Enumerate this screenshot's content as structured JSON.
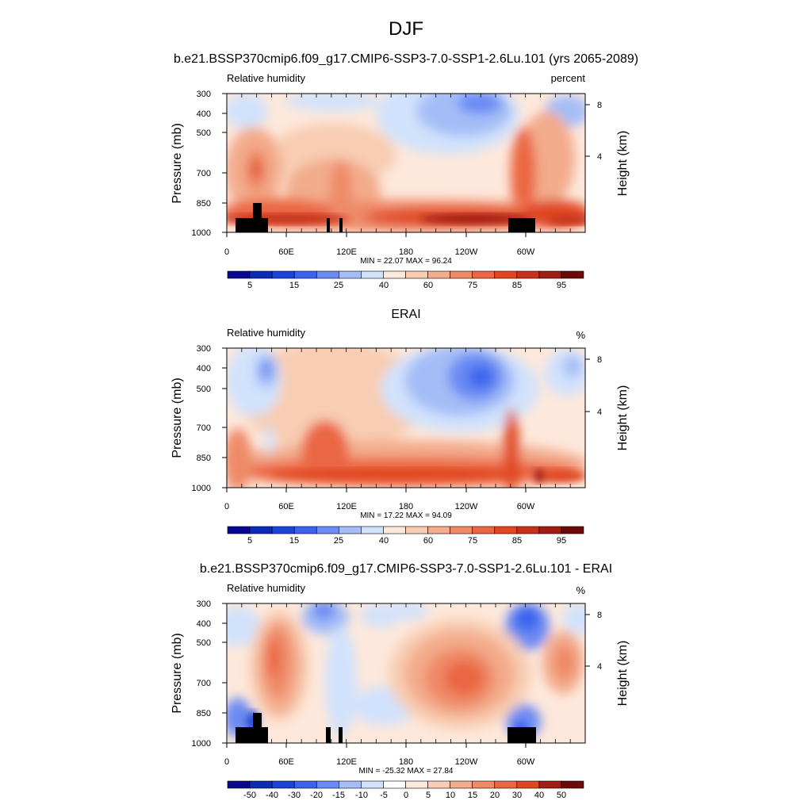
{
  "page": {
    "title": "DJF"
  },
  "colors": {
    "rh_levels": [
      "#08088f",
      "#0b2ab5",
      "#1a45d8",
      "#3b63ee",
      "#6a8bf3",
      "#a4bdf7",
      "#d1e2fc",
      "#fde8db",
      "#f8cdb3",
      "#f3ac8c",
      "#ef8a67",
      "#eb6642",
      "#e04721",
      "#c4321a",
      "#9e1e14",
      "#6b0a08"
    ],
    "diff_levels": [
      "#08088f",
      "#0b2ab5",
      "#1a45d8",
      "#3b63ee",
      "#6a8bf3",
      "#a4bdf7",
      "#d1e2fc",
      "#ffffff",
      "#fde8db",
      "#f8cdb3",
      "#f3ac8c",
      "#ef8a67",
      "#eb6642",
      "#e04721",
      "#9e1e14",
      "#6b0a08"
    ],
    "terrain": "#000000"
  },
  "chart_data": [
    {
      "type": "heatmap",
      "title": "b.e21.BSSP370cmip6.f09_g17.CMIP6-SSP3-7.0-SSP1-2.6Lu.101 (yrs 2065-2089)",
      "left_label": "Relative humidity",
      "right_label": "percent",
      "ylabel": "Pressure (mb)",
      "ylabel_right": "Height (km)",
      "xticks": [
        "0",
        "60E",
        "120E",
        "180",
        "120W",
        "60W"
      ],
      "yticks": [
        "300",
        "400",
        "500",
        "700",
        "850",
        "1000"
      ],
      "yticks_right": [
        "8",
        "4"
      ],
      "stats": "MIN =  22.07  MAX =  96.24",
      "min": 22.07,
      "max": 96.24,
      "ylim": [
        1000,
        300
      ],
      "colorbar_labels": [
        "5",
        "15",
        "25",
        "40",
        "60",
        "75",
        "85",
        "95"
      ]
    },
    {
      "type": "heatmap",
      "title": "ERAI",
      "left_label": "Relative humidity",
      "right_label": "%",
      "ylabel": "Pressure (mb)",
      "ylabel_right": "Height (km)",
      "xticks": [
        "0",
        "60E",
        "120E",
        "180",
        "120W",
        "60W"
      ],
      "yticks": [
        "300",
        "400",
        "500",
        "700",
        "850",
        "1000"
      ],
      "yticks_right": [
        "8",
        "4"
      ],
      "stats": "MIN =  17.22  MAX =  94.09",
      "min": 17.22,
      "max": 94.09,
      "ylim": [
        1000,
        300
      ],
      "colorbar_labels": [
        "5",
        "15",
        "25",
        "40",
        "60",
        "75",
        "85",
        "95"
      ]
    },
    {
      "type": "heatmap",
      "title": "b.e21.BSSP370cmip6.f09_g17.CMIP6-SSP3-7.0-SSP1-2.6Lu.101 - ERAI",
      "left_label": "Relative humidity",
      "right_label": "%",
      "ylabel": "Pressure (mb)",
      "ylabel_right": "Height (km)",
      "xticks": [
        "0",
        "60E",
        "120E",
        "180",
        "120W",
        "60W"
      ],
      "yticks": [
        "300",
        "400",
        "500",
        "700",
        "850",
        "1000"
      ],
      "yticks_right": [
        "8",
        "4"
      ],
      "stats": "MIN = -25.32  MAX =  27.84",
      "min": -25.32,
      "max": 27.84,
      "ylim": [
        1000,
        300
      ],
      "colorbar_labels": [
        "-50",
        "-40",
        "-30",
        "-20",
        "-15",
        "-10",
        "-5",
        "0",
        "5",
        "10",
        "15",
        "20",
        "30",
        "40",
        "50"
      ]
    }
  ]
}
